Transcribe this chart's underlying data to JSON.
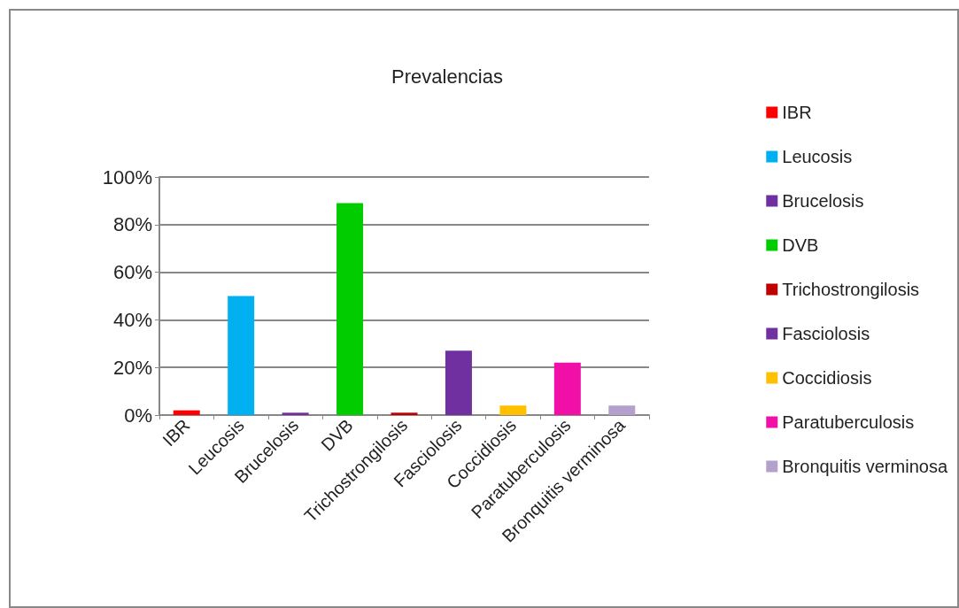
{
  "chart_data": {
    "type": "bar",
    "title": "Prevalencias",
    "categories": [
      "IBR",
      "Leucosis",
      "Brucelosis",
      "DVB",
      "Trichostrongilosis",
      "Fasciolosis",
      "Coccidiosis",
      "Paratuberculosis",
      "Bronquitis verminosa"
    ],
    "series": [
      {
        "name": "IBR",
        "color": "#ff0000",
        "values": [
          2,
          null,
          null,
          null,
          null,
          null,
          null,
          null,
          null
        ]
      },
      {
        "name": "Leucosis",
        "color": "#00b0f0",
        "values": [
          null,
          50,
          null,
          null,
          null,
          null,
          null,
          null,
          null
        ]
      },
      {
        "name": "Brucelosis",
        "color": "#7030a0",
        "values": [
          null,
          null,
          1,
          null,
          null,
          null,
          null,
          null,
          null
        ]
      },
      {
        "name": "DVB",
        "color": "#00cc00",
        "values": [
          null,
          null,
          null,
          89,
          null,
          null,
          null,
          null,
          null
        ]
      },
      {
        "name": "Trichostrongilosis",
        "color": "#c00000",
        "values": [
          null,
          null,
          null,
          null,
          1,
          null,
          null,
          null,
          null
        ]
      },
      {
        "name": "Fasciolosis",
        "color": "#7030a0",
        "values": [
          null,
          null,
          null,
          null,
          null,
          27,
          null,
          null,
          null
        ]
      },
      {
        "name": "Coccidiosis",
        "color": "#ffc000",
        "values": [
          null,
          null,
          null,
          null,
          null,
          null,
          4,
          null,
          null
        ]
      },
      {
        "name": "Paratuberculosis",
        "color": "#f010a8",
        "values": [
          null,
          null,
          null,
          null,
          null,
          null,
          null,
          22,
          null
        ]
      },
      {
        "name": "Bronquitis verminosa",
        "color": "#b4a0cc",
        "values": [
          null,
          null,
          null,
          null,
          null,
          null,
          null,
          null,
          4
        ]
      }
    ],
    "ylim": [
      0,
      100
    ],
    "yticks": [
      {
        "value": 0,
        "label": "0%"
      },
      {
        "value": 20,
        "label": "20%"
      },
      {
        "value": 40,
        "label": "40%"
      },
      {
        "value": 60,
        "label": "60%"
      },
      {
        "value": 80,
        "label": "80%"
      },
      {
        "value": 100,
        "label": "100%"
      }
    ],
    "grid": "y",
    "legend": "right"
  }
}
